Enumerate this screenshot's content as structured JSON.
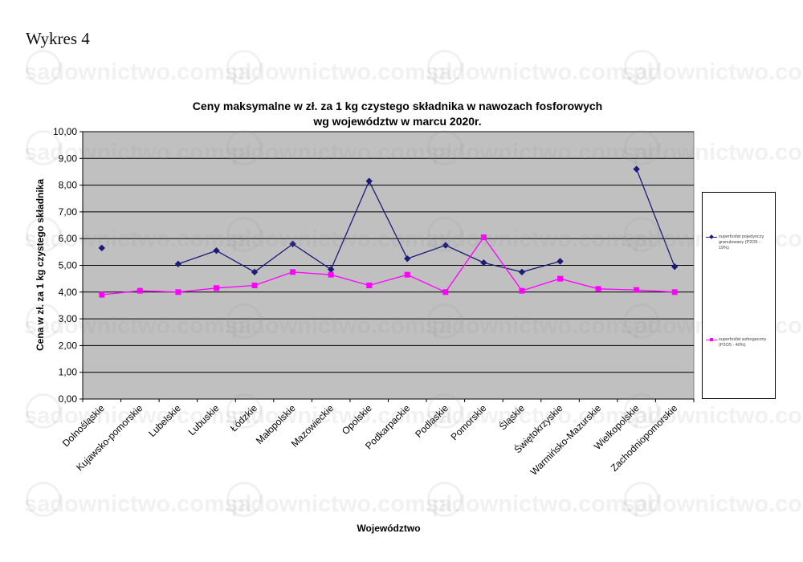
{
  "page": {
    "heading": "Wykres 4",
    "watermark_text": "sadownictwo.com.pl"
  },
  "colors": {
    "plot_background": "#c0c0c0",
    "series_1": "#1b1b7a",
    "series_2": "#ff00ff",
    "gridline": "#000000"
  },
  "chart_data": {
    "type": "line",
    "title": "Ceny maksymalne  w zł. za 1 kg czystego składnika w nawozach fosforowych",
    "subtitle": "wg województw w marcu 2020r.",
    "xlabel": "Województwo",
    "ylabel": "Cena w zł. za 1 kg czystego składnika",
    "ylim": [
      0,
      10
    ],
    "y_ticks": [
      "0,00",
      "1,00",
      "2,00",
      "3,00",
      "4,00",
      "5,00",
      "6,00",
      "7,00",
      "8,00",
      "9,00",
      "10,00"
    ],
    "grid": true,
    "legend_position": "right",
    "categories": [
      "Dolnośląskie",
      "Kujawsko-pomorskie",
      "Lubelskie",
      "Lubuskie",
      "Łódzkie",
      "Małopolskie",
      "Mazowieckie",
      "Opolskie",
      "Podkarpackie",
      "Podlaskie",
      "Pomorskie",
      "Śląskie",
      "Świętokrzyskie",
      "Warmińsko-Mazurskie",
      "Wielkopolskie",
      "Zachodniopomorskie"
    ],
    "series": [
      {
        "name": "superfosfat pojedynczy granulowany (P2O5 - 19%)",
        "marker": "diamond",
        "values": [
          5.65,
          null,
          5.05,
          5.55,
          4.75,
          5.8,
          4.85,
          8.15,
          5.25,
          5.75,
          5.1,
          4.75,
          5.15,
          null,
          8.6,
          4.95
        ]
      },
      {
        "name": "superfosfat wzbogacony (P2O5 - 40%)",
        "marker": "square",
        "values": [
          3.9,
          4.05,
          4.0,
          4.15,
          4.25,
          4.75,
          4.65,
          4.25,
          4.65,
          4.0,
          6.05,
          4.05,
          4.5,
          4.12,
          4.08,
          4.0
        ]
      }
    ]
  }
}
